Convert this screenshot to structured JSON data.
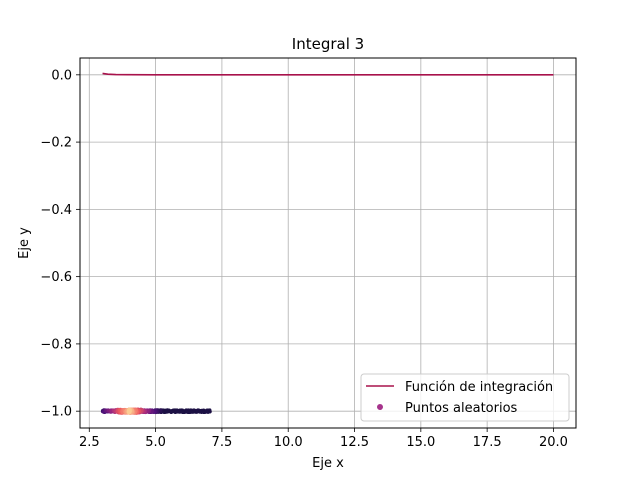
{
  "chart_data": {
    "type": "line",
    "title": "Integral 3",
    "xlabel": "Eje x",
    "ylabel": "Eje y",
    "xlim": [
      2.15,
      20.85
    ],
    "ylim": [
      -1.05,
      0.05
    ],
    "xticks": [
      2.5,
      5.0,
      7.5,
      10.0,
      12.5,
      15.0,
      17.5,
      20.0
    ],
    "xtick_labels": [
      "2.5",
      "5.0",
      "7.5",
      "10.0",
      "12.5",
      "15.0",
      "17.5",
      "20.0"
    ],
    "yticks": [
      0.0,
      -0.2,
      -0.4,
      -0.6,
      -0.8,
      -1.0
    ],
    "ytick_labels": [
      "0.0",
      "−0.2",
      "−0.4",
      "−0.6",
      "−0.8",
      "−1.0"
    ],
    "grid": true,
    "legend_position": "lower-right",
    "series": [
      {
        "name": "Función de integración",
        "kind": "line",
        "color": "#a8124b",
        "x": [
          3.0,
          3.2,
          3.5,
          4.0,
          5.0,
          6.0,
          8.0,
          10.0,
          12.0,
          14.0,
          16.0,
          18.0,
          20.0
        ],
        "y": [
          0.004,
          0.002,
          0.0008,
          0.0003,
          0.0001,
          5e-05,
          2e-05,
          0.0,
          0.0,
          0.0,
          0.0,
          0.0,
          0.0
        ]
      },
      {
        "name": "Puntos aleatorios",
        "kind": "scatter",
        "color": "#a6338c",
        "colormap": "magma",
        "x_range": [
          3.0,
          7.1
        ],
        "y": -1.0,
        "density_peak_x": 4.0
      }
    ]
  }
}
